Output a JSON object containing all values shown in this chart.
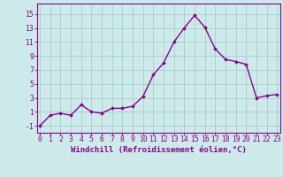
{
  "x": [
    0,
    1,
    2,
    3,
    4,
    5,
    6,
    7,
    8,
    9,
    10,
    11,
    12,
    13,
    14,
    15,
    16,
    17,
    18,
    19,
    20,
    21,
    22,
    23
  ],
  "y": [
    -1,
    0.5,
    0.8,
    0.5,
    2.0,
    1.0,
    0.8,
    1.5,
    1.5,
    1.8,
    3.2,
    6.3,
    8.0,
    11.0,
    13.0,
    14.8,
    13.1,
    10.0,
    8.5,
    8.2,
    7.8,
    3.0,
    3.3,
    3.5
  ],
  "line_color": "#8B008B",
  "marker": "D",
  "marker_size": 1.8,
  "bg_color": "#cceaea",
  "grid_color": "#aacccc",
  "xlabel": "Windchill (Refroidissement éolien,°C)",
  "xlabel_fontsize": 6.5,
  "xtick_labels": [
    "0",
    "1",
    "2",
    "3",
    "4",
    "5",
    "6",
    "7",
    "8",
    "9",
    "10",
    "11",
    "12",
    "13",
    "14",
    "15",
    "16",
    "17",
    "18",
    "19",
    "20",
    "21",
    "22",
    "23"
  ],
  "ytick_labels": [
    "-1",
    "1",
    "3",
    "5",
    "7",
    "9",
    "11",
    "13",
    "15"
  ],
  "ytick_values": [
    -1,
    1,
    3,
    5,
    7,
    9,
    11,
    13,
    15
  ],
  "ylim": [
    -2.0,
    16.5
  ],
  "xlim": [
    -0.3,
    23.3
  ],
  "tick_fontsize": 5.8,
  "line_width": 1.0
}
